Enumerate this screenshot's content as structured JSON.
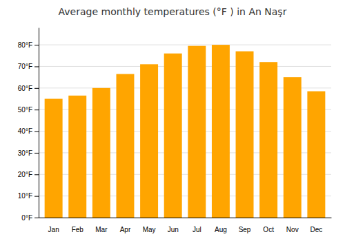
{
  "chart_data": {
    "type": "bar",
    "title": "Average monthly temperatures (°F ) in An Naşr",
    "categories": [
      "Jan",
      "Feb",
      "Mar",
      "Apr",
      "May",
      "Jun",
      "Jul",
      "Aug",
      "Sep",
      "Oct",
      "Nov",
      "Dec"
    ],
    "values": [
      55,
      56.5,
      60,
      66.5,
      71,
      76,
      79.5,
      80,
      77,
      72,
      65,
      58.5
    ],
    "color": "#FFA500",
    "ylim": [
      0,
      88
    ],
    "yticks": [
      {
        "value": 0,
        "label": "0°F"
      },
      {
        "value": 10,
        "label": "10°F"
      },
      {
        "value": 20,
        "label": "20°F"
      },
      {
        "value": 30,
        "label": "30°F"
      },
      {
        "value": 40,
        "label": "40°F"
      },
      {
        "value": 50,
        "label": "50°F"
      },
      {
        "value": 60,
        "label": "60°F"
      },
      {
        "value": 70,
        "label": "70°F"
      },
      {
        "value": 80,
        "label": "80°F"
      }
    ],
    "grid": true
  }
}
